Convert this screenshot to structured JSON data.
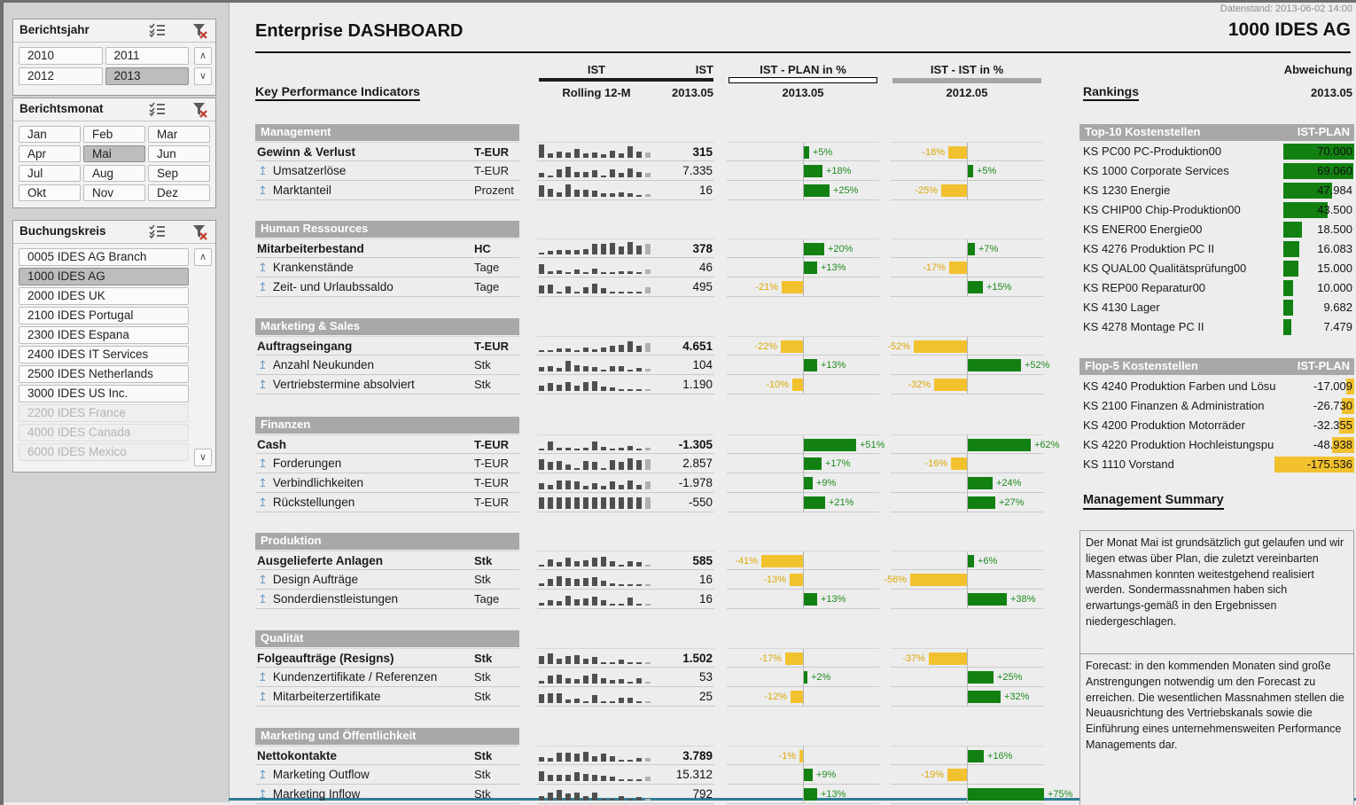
{
  "window": {
    "datenstand": "Datenstand: 2013-06-02 14:00",
    "company": "1000 IDES AG",
    "title": "Enterprise DASHBOARD"
  },
  "colors": {
    "green": "#128112",
    "green_text": "#1f8a1f",
    "yellow": "#f2c12e",
    "yellow_text": "#dca702",
    "spark_dark": "#4f4f4f",
    "spark_light": "#b0b0b0",
    "band_gray": "#a8a8a8",
    "teal_line": "#2f7f95"
  },
  "slicers": {
    "berichtsjahr": {
      "title": "Berichtsjahr",
      "columns": 2,
      "items": [
        {
          "label": "2010",
          "state": "normal"
        },
        {
          "label": "2011",
          "state": "normal"
        },
        {
          "label": "2012",
          "state": "normal"
        },
        {
          "label": "2013",
          "state": "selected"
        }
      ]
    },
    "berichtsmonat": {
      "title": "Berichtsmonat",
      "columns": 3,
      "items": [
        {
          "label": "Jan",
          "state": "normal"
        },
        {
          "label": "Feb",
          "state": "normal"
        },
        {
          "label": "Mar",
          "state": "normal"
        },
        {
          "label": "Apr",
          "state": "normal"
        },
        {
          "label": "Mai",
          "state": "selected"
        },
        {
          "label": "Jun",
          "state": "normal"
        },
        {
          "label": "Jul",
          "state": "normal"
        },
        {
          "label": "Aug",
          "state": "normal"
        },
        {
          "label": "Sep",
          "state": "normal"
        },
        {
          "label": "Okt",
          "state": "normal"
        },
        {
          "label": "Nov",
          "state": "normal"
        },
        {
          "label": "Dez",
          "state": "normal"
        }
      ]
    },
    "buchungskreis": {
      "title": "Buchungskreis",
      "columns": 1,
      "items": [
        {
          "label": "0005 IDES AG Branch",
          "state": "normal"
        },
        {
          "label": "1000 IDES AG",
          "state": "selected"
        },
        {
          "label": "2000 IDES UK",
          "state": "normal"
        },
        {
          "label": "2100 IDES Portugal",
          "state": "normal"
        },
        {
          "label": "2300 IDES Espana",
          "state": "normal"
        },
        {
          "label": "2400 IDES IT Services",
          "state": "normal"
        },
        {
          "label": "2500 IDES Netherlands",
          "state": "normal"
        },
        {
          "label": "3000 IDES US Inc.",
          "state": "normal"
        },
        {
          "label": "2200 IDES France",
          "state": "disabled"
        },
        {
          "label": "4000 IDES Canada",
          "state": "disabled"
        },
        {
          "label": "6000 IDES Mexico",
          "state": "disabled"
        }
      ]
    }
  },
  "kpi": {
    "heading": "Key Performance Indicators",
    "headers": {
      "ist_spark_top": "IST",
      "ist_spark_bottom": "Rolling 12-M",
      "ist_val_top": "IST",
      "ist_val_bottom": "2013.05",
      "plan_top": "IST - PLAN in %",
      "plan_bottom": "2013.05",
      "istist_top": "IST - IST in %",
      "istist_bottom": "2012.05",
      "rankings": "Rankings",
      "abw_top": "Abweichung",
      "abw_bottom": "2013.05"
    },
    "sections": [
      {
        "name": "Management",
        "rows": [
          {
            "label": "Gewinn & Verlust",
            "unit": "T-EUR",
            "main": true,
            "value": "315",
            "plan": 5,
            "ist": -18,
            "spark": [
              0.95,
              0.3,
              0.45,
              0.35,
              0.6,
              0.3,
              0.4,
              0.28,
              0.5,
              0.3,
              0.8,
              0.45,
              0.35
            ]
          },
          {
            "label": "Umsatzerlöse",
            "unit": "T-EUR",
            "main": false,
            "value": "7.335",
            "plan": 18,
            "ist": 5,
            "spark": [
              0.3,
              0.12,
              0.55,
              0.75,
              0.4,
              0.35,
              0.5,
              0.12,
              0.55,
              0.3,
              0.65,
              0.35,
              0.3
            ]
          },
          {
            "label": "Marktanteil",
            "unit": "Prozent",
            "main": false,
            "value": "16",
            "plan": 25,
            "ist": -25,
            "spark": [
              0.8,
              0.55,
              0.3,
              0.85,
              0.5,
              0.48,
              0.45,
              0.25,
              0.22,
              0.3,
              0.25,
              0.1,
              0.2
            ]
          }
        ]
      },
      {
        "name": "Human Ressources",
        "rows": [
          {
            "label": "Mitarbeiterbestand",
            "unit": "HC",
            "main": true,
            "value": "378",
            "plan": 20,
            "ist": 7,
            "spark": [
              0.08,
              0.28,
              0.3,
              0.32,
              0.34,
              0.36,
              0.75,
              0.78,
              0.8,
              0.55,
              0.85,
              0.6,
              0.78
            ]
          },
          {
            "label": "Krankenstände",
            "unit": "Tage",
            "main": false,
            "value": "46",
            "plan": 13,
            "ist": -17,
            "spark": [
              0.7,
              0.2,
              0.28,
              0.1,
              0.3,
              0.12,
              0.35,
              0.1,
              0.15,
              0.18,
              0.2,
              0.12,
              0.3
            ]
          },
          {
            "label": "Zeit- und Urlaubssaldo",
            "unit": "Tage",
            "main": false,
            "value": "495",
            "plan": -21,
            "ist": 15,
            "spark": [
              0.55,
              0.6,
              0.12,
              0.5,
              0.15,
              0.45,
              0.7,
              0.35,
              0.1,
              0.08,
              0.08,
              0.1,
              0.45
            ]
          }
        ]
      },
      {
        "name": "Marketing & Sales",
        "rows": [
          {
            "label": "Auftragseingang",
            "unit": "T-EUR",
            "main": true,
            "value": "4.651",
            "plan": -22,
            "ist": -52,
            "spark": [
              0.06,
              0.08,
              0.25,
              0.28,
              0.12,
              0.3,
              0.2,
              0.3,
              0.45,
              0.5,
              0.75,
              0.45,
              0.6
            ]
          },
          {
            "label": "Anzahl Neukunden",
            "unit": "Stk",
            "main": false,
            "value": "104",
            "plan": 13,
            "ist": 52,
            "spark": [
              0.3,
              0.4,
              0.28,
              0.75,
              0.45,
              0.35,
              0.3,
              0.12,
              0.35,
              0.4,
              0.15,
              0.25,
              0.2
            ]
          },
          {
            "label": "Vertriebstermine absolviert",
            "unit": "Stk",
            "main": false,
            "value": "1.190",
            "plan": -10,
            "ist": -32,
            "spark": [
              0.35,
              0.55,
              0.45,
              0.6,
              0.4,
              0.65,
              0.7,
              0.3,
              0.25,
              0.15,
              0.1,
              0.15,
              0.1
            ]
          }
        ]
      },
      {
        "name": "Finanzen",
        "rows": [
          {
            "label": "Cash",
            "unit": "T-EUR",
            "main": true,
            "value": "-1.305",
            "plan": 51,
            "ist": 62,
            "spark": [
              0.15,
              0.6,
              0.2,
              0.18,
              0.15,
              0.18,
              0.65,
              0.25,
              0.15,
              0.2,
              0.3,
              0.12,
              0.18
            ]
          },
          {
            "label": "Forderungen",
            "unit": "T-EUR",
            "main": false,
            "value": "2.857",
            "plan": 17,
            "ist": -16,
            "spark": [
              0.75,
              0.55,
              0.6,
              0.35,
              0.15,
              0.6,
              0.55,
              0.15,
              0.7,
              0.55,
              0.8,
              0.7,
              0.75
            ]
          },
          {
            "label": "Verbindlichkeiten",
            "unit": "T-EUR",
            "main": false,
            "value": "-1.978",
            "plan": 9,
            "ist": 24,
            "spark": [
              0.45,
              0.3,
              0.6,
              0.6,
              0.55,
              0.28,
              0.45,
              0.28,
              0.55,
              0.3,
              0.6,
              0.3,
              0.55
            ]
          },
          {
            "label": "Rückstellungen",
            "unit": "T-EUR",
            "main": false,
            "value": "-550",
            "plan": 21,
            "ist": 27,
            "spark": [
              0.8,
              0.8,
              0.8,
              0.8,
              0.8,
              0.8,
              0.8,
              0.8,
              0.8,
              0.8,
              0.8,
              0.8,
              0.8
            ]
          }
        ]
      },
      {
        "name": "Produktion",
        "rows": [
          {
            "label": "Ausgelieferte Anlagen",
            "unit": "Stk",
            "main": true,
            "value": "585",
            "plan": -41,
            "ist": 6,
            "spark": [
              0.15,
              0.5,
              0.3,
              0.65,
              0.35,
              0.45,
              0.6,
              0.68,
              0.35,
              0.12,
              0.4,
              0.3,
              0.15
            ]
          },
          {
            "label": "Design Aufträge",
            "unit": "Stk",
            "main": false,
            "value": "16",
            "plan": -13,
            "ist": -56,
            "spark": [
              0.2,
              0.5,
              0.7,
              0.55,
              0.5,
              0.55,
              0.6,
              0.4,
              0.18,
              0.1,
              0.12,
              0.1,
              0.12
            ]
          },
          {
            "label": "Sonderdienstleistungen",
            "unit": "Tage",
            "main": false,
            "value": "16",
            "plan": 13,
            "ist": 38,
            "spark": [
              0.18,
              0.4,
              0.3,
              0.7,
              0.45,
              0.5,
              0.65,
              0.35,
              0.1,
              0.1,
              0.55,
              0.12,
              0.1
            ]
          }
        ]
      },
      {
        "name": "Qualität",
        "rows": [
          {
            "label": "Folgeaufträge (Resigns)",
            "unit": "Stk",
            "main": true,
            "value": "1.502",
            "plan": -17,
            "ist": -37,
            "spark": [
              0.55,
              0.75,
              0.4,
              0.55,
              0.6,
              0.35,
              0.5,
              0.12,
              0.1,
              0.3,
              0.1,
              0.1,
              0.12
            ]
          },
          {
            "label": "Kundenzertifikate / Referenzen",
            "unit": "Stk",
            "main": false,
            "value": "53",
            "plan": 2,
            "ist": 25,
            "spark": [
              0.2,
              0.55,
              0.6,
              0.35,
              0.3,
              0.55,
              0.7,
              0.4,
              0.25,
              0.3,
              0.1,
              0.35,
              0.12
            ]
          },
          {
            "label": "Mitarbeiterzertifikate",
            "unit": "Stk",
            "main": false,
            "value": "25",
            "plan": -12,
            "ist": 32,
            "spark": [
              0.65,
              0.7,
              0.68,
              0.25,
              0.3,
              0.15,
              0.55,
              0.12,
              0.1,
              0.35,
              0.38,
              0.15,
              0.1
            ]
          }
        ]
      },
      {
        "name": "Marketing und Öffentlichkeit",
        "rows": [
          {
            "label": "Nettokontakte",
            "unit": "Stk",
            "main": true,
            "value": "3.789",
            "plan": -1,
            "ist": 16,
            "spark": [
              0.3,
              0.25,
              0.6,
              0.65,
              0.55,
              0.7,
              0.4,
              0.55,
              0.35,
              0.1,
              0.1,
              0.28,
              0.22
            ]
          },
          {
            "label": "Marketing Outflow",
            "unit": "Stk",
            "main": false,
            "value": "15.312",
            "plan": 9,
            "ist": -19,
            "spark": [
              0.7,
              0.45,
              0.45,
              0.45,
              0.65,
              0.5,
              0.45,
              0.4,
              0.3,
              0.1,
              0.1,
              0.12,
              0.3
            ]
          },
          {
            "label": "Marketing Inflow",
            "unit": "Stk",
            "main": false,
            "value": "792",
            "plan": 13,
            "ist": 75,
            "spark": [
              0.3,
              0.55,
              0.75,
              0.5,
              0.55,
              0.3,
              0.55,
              0.12,
              0.1,
              0.3,
              0.15,
              0.28,
              0.12
            ]
          }
        ]
      }
    ]
  },
  "rankings": {
    "top10": {
      "title": "Top-10 Kostenstellen",
      "header": "IST-PLAN",
      "max": 70000,
      "rows": [
        {
          "label": "KS PC00 PC-Produktion00",
          "value": "70.000",
          "num": 70000
        },
        {
          "label": "KS 1000 Corporate Services",
          "value": "69.060",
          "num": 69060
        },
        {
          "label": "KS 1230 Energie",
          "value": "47.984",
          "num": 47984
        },
        {
          "label": "KS CHIP00 Chip-Produktion00",
          "value": "43.500",
          "num": 43500
        },
        {
          "label": "KS ENER00 Energie00",
          "value": "18.500",
          "num": 18500
        },
        {
          "label": "KS 4276 Produktion PC II",
          "value": "16.083",
          "num": 16083
        },
        {
          "label": "KS QUAL00 Qualitätsprüfung00",
          "value": "15.000",
          "num": 15000
        },
        {
          "label": "KS REP00 Reparatur00",
          "value": "10.000",
          "num": 10000
        },
        {
          "label": "KS 4130 Lager",
          "value": "9.682",
          "num": 9682
        },
        {
          "label": "KS 4278 Montage PC II",
          "value": "7.479",
          "num": 7479
        }
      ]
    },
    "flop5": {
      "title": "Flop-5 Kostenstellen",
      "header": "IST-PLAN",
      "max": 175536,
      "rows": [
        {
          "label": "KS 4240 Produktion Farben und Lösu",
          "value": "-17.009",
          "num": 17009
        },
        {
          "label": "KS 2100 Finanzen & Administration",
          "value": "-26.730",
          "num": 26730
        },
        {
          "label": "KS 4200 Produktion Motorräder",
          "value": "-32.355",
          "num": 32355
        },
        {
          "label": "KS 4220 Produktion Hochleistungspu",
          "value": "-48.938",
          "num": 48938
        },
        {
          "label": "KS 1110 Vorstand",
          "value": "-175.536",
          "num": 175536
        }
      ]
    },
    "summary": {
      "title": "Management Summary",
      "p1": "Der Monat Mai ist grundsätzlich gut gelaufen und wir liegen etwas über Plan, die zuletzt vereinbarten Massnahmen konnten weitestgehend realisiert werden. Sondermassnahmen haben sich erwartungs-gemäß in den Ergebnissen niedergeschlagen.",
      "p2": "Forecast: in den kommenden Monaten sind große Anstrengungen notwendig um den Forecast zu erreichen. Die wesentlichen Massnahmen stellen die Neuausrichtung des Vertriebskanals sowie die Einführung eines unternehmensweiten Performance Managements dar."
    }
  }
}
